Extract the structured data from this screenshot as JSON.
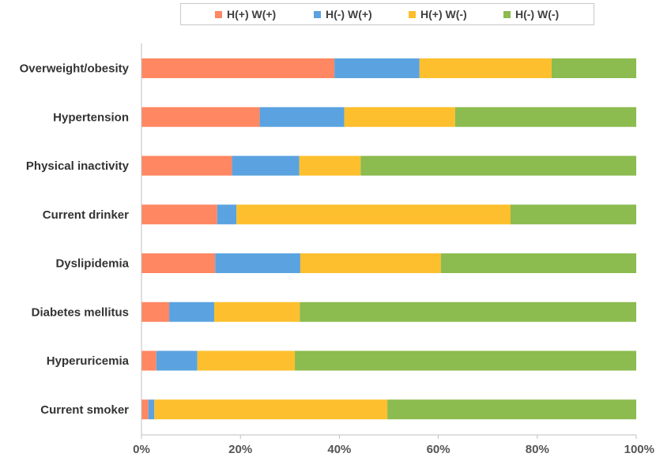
{
  "chart_data": {
    "type": "bar",
    "orientation": "horizontal",
    "stacked": "percent",
    "categories": [
      "Overweight/obesity",
      "Hypertension",
      "Physical inactivity",
      "Current drinker",
      "Dyslipidemia",
      "Diabetes mellitus",
      "Hyperuricemia",
      "Current smoker"
    ],
    "series": [
      {
        "name": "H(+) W(+)",
        "color": "#FF8762",
        "values": [
          39.0,
          23.9,
          18.3,
          15.3,
          14.9,
          5.6,
          3.0,
          1.4
        ]
      },
      {
        "name": "H(-) W(+)",
        "color": "#5BA3E0",
        "values": [
          17.2,
          17.1,
          13.6,
          3.9,
          17.2,
          9.1,
          8.3,
          1.2
        ]
      },
      {
        "name": "H(+) W(-)",
        "color": "#FDBF2D",
        "values": [
          26.7,
          22.4,
          12.4,
          55.4,
          28.4,
          17.3,
          19.7,
          47.1
        ]
      },
      {
        "name": "H(-) W(-)",
        "color": "#8CBB4F",
        "values": [
          17.1,
          36.6,
          55.7,
          25.4,
          39.5,
          68.0,
          69.0,
          50.3
        ]
      }
    ],
    "xlim": [
      0,
      100
    ],
    "xticks": [
      "0%",
      "20%",
      "40%",
      "60%",
      "80%",
      "100%"
    ],
    "xlabel": "",
    "ylabel": "",
    "grid": false,
    "legend": "top"
  }
}
